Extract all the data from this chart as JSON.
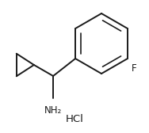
{
  "background_color": "#ffffff",
  "line_color": "#1a1a1a",
  "line_width": 1.4,
  "text_color": "#1a1a1a",
  "nh2_label": "NH₂",
  "hcl_label": "HCl",
  "f_label": "F",
  "figsize": [
    1.88,
    1.68
  ],
  "dpi": 100,
  "font_size_labels": 8.5,
  "font_size_hcl": 9.5
}
